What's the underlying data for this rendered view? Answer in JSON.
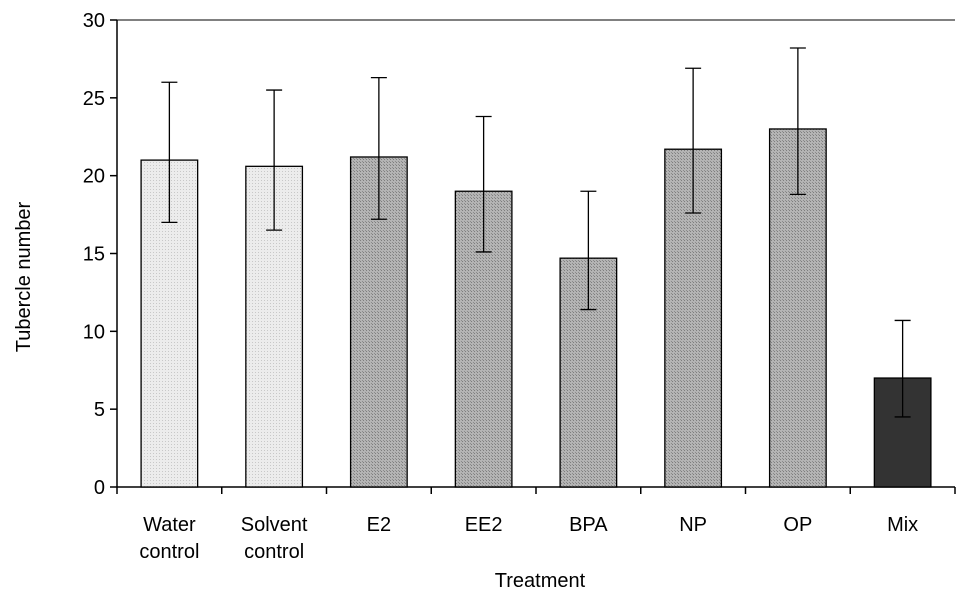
{
  "chart_data": {
    "type": "bar",
    "title": "",
    "xlabel": "Treatment",
    "ylabel": "Tubercle number",
    "ylim": [
      0,
      30
    ],
    "yticks": [
      0,
      5,
      10,
      15,
      20,
      25,
      30
    ],
    "grid": false,
    "legend": "none",
    "categories": [
      [
        "Water",
        "control"
      ],
      [
        "Solvent",
        "control"
      ],
      [
        "E2"
      ],
      [
        "EE2"
      ],
      [
        "BPA"
      ],
      [
        "NP"
      ],
      [
        "OP"
      ],
      [
        "Mix"
      ]
    ],
    "values": [
      21.0,
      20.6,
      21.2,
      19.0,
      14.7,
      21.7,
      23.0,
      7.0
    ],
    "error_low": [
      17.0,
      16.5,
      17.2,
      15.1,
      11.4,
      17.6,
      18.8,
      4.5
    ],
    "error_high": [
      26.0,
      25.5,
      26.3,
      23.8,
      19.0,
      26.9,
      28.2,
      10.7
    ],
    "bar_colors": [
      "#e4e4e4",
      "#e4e4e4",
      "#a8a8a8",
      "#a8a8a8",
      "#a8a8a8",
      "#a8a8a8",
      "#a8a8a8",
      "#333333"
    ]
  }
}
